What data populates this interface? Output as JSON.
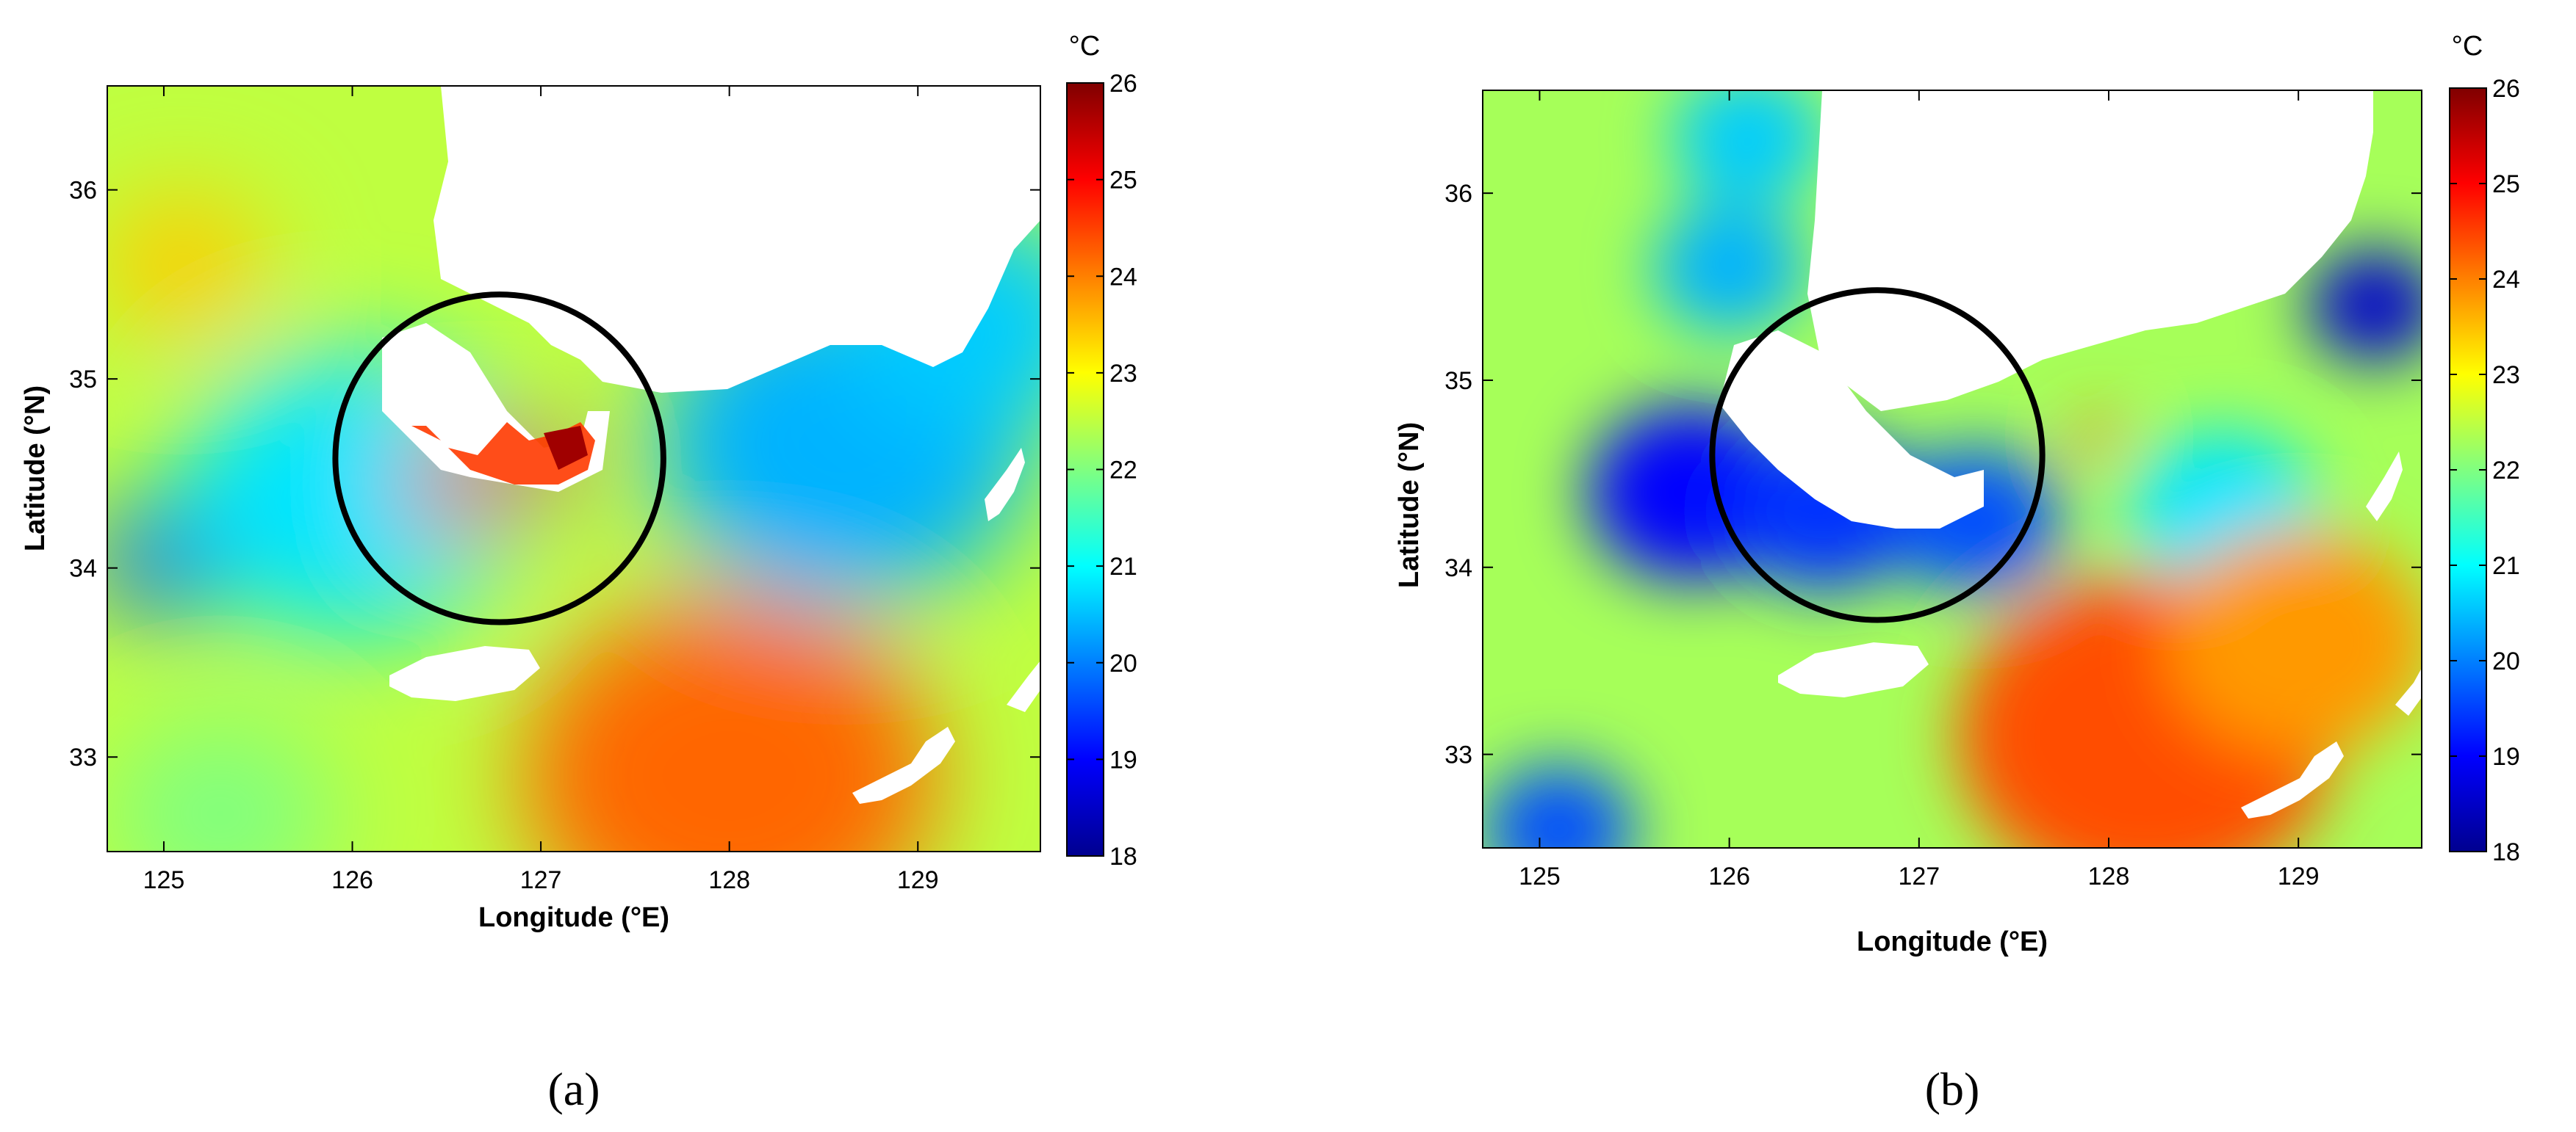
{
  "chart_data": [
    {
      "type": "heatmap",
      "panel_label": "(a)",
      "xlabel": "Longitude (°E)",
      "ylabel": "Latitude (°N)",
      "x_ticks": [
        125,
        126,
        127,
        128,
        129
      ],
      "y_ticks": [
        33,
        34,
        35,
        36
      ],
      "xlim": [
        124.7,
        129.65
      ],
      "ylim": [
        32.5,
        36.55
      ],
      "colorbar": {
        "unit": "°C",
        "min": 18,
        "max": 26,
        "ticks": [
          18,
          19,
          20,
          21,
          22,
          23,
          24,
          25,
          26
        ],
        "colormap": "jet"
      },
      "base_value": 22.5,
      "features": [
        {
          "lon": 125.1,
          "lat": 35.6,
          "value": 23.4,
          "radius_deg": 0.45
        },
        {
          "lon": 125.0,
          "lat": 34.05,
          "value": 19.6,
          "radius_deg": 0.35
        },
        {
          "lon": 126.0,
          "lat": 34.4,
          "value": 20.8,
          "radius_deg": 0.9
        },
        {
          "lon": 128.6,
          "lat": 34.65,
          "value": 20.4,
          "radius_deg": 1.0
        },
        {
          "lon": 129.3,
          "lat": 35.3,
          "value": 20.6,
          "radius_deg": 0.7
        },
        {
          "lon": 128.0,
          "lat": 32.9,
          "value": 24.2,
          "radius_deg": 1.1
        },
        {
          "lon": 126.55,
          "lat": 34.45,
          "value": 25.0,
          "radius_deg": 0.28
        },
        {
          "lon": 127.0,
          "lat": 34.55,
          "value": 25.6,
          "radius_deg": 0.2
        },
        {
          "lon": 125.3,
          "lat": 32.7,
          "value": 22.0,
          "radius_deg": 0.6
        }
      ],
      "circle": {
        "lon": 126.78,
        "lat": 34.58,
        "radius_deg": 0.87
      }
    },
    {
      "type": "heatmap",
      "panel_label": "(b)",
      "xlabel": "Longitude (°E)",
      "ylabel": "Latitude (°N)",
      "x_ticks": [
        125,
        126,
        127,
        128,
        129
      ],
      "y_ticks": [
        33,
        34,
        35,
        36
      ],
      "xlim": [
        124.7,
        129.65
      ],
      "ylim": [
        32.5,
        36.55
      ],
      "colorbar": {
        "unit": "°C",
        "min": 18,
        "max": 26,
        "ticks": [
          18,
          19,
          20,
          21,
          22,
          23,
          24,
          25,
          26
        ],
        "colormap": "jet"
      },
      "base_value": 22.3,
      "features": [
        {
          "lon": 125.8,
          "lat": 34.4,
          "value": 19.0,
          "radius_deg": 0.55
        },
        {
          "lon": 126.5,
          "lat": 34.3,
          "value": 19.4,
          "radius_deg": 0.5
        },
        {
          "lon": 127.3,
          "lat": 34.25,
          "value": 19.6,
          "radius_deg": 0.45
        },
        {
          "lon": 126.0,
          "lat": 35.6,
          "value": 20.4,
          "radius_deg": 0.4
        },
        {
          "lon": 126.1,
          "lat": 36.3,
          "value": 20.6,
          "radius_deg": 0.4
        },
        {
          "lon": 129.4,
          "lat": 35.4,
          "value": 18.6,
          "radius_deg": 0.35
        },
        {
          "lon": 128.6,
          "lat": 34.3,
          "value": 20.8,
          "radius_deg": 0.5
        },
        {
          "lon": 125.1,
          "lat": 32.6,
          "value": 19.6,
          "radius_deg": 0.4
        },
        {
          "lon": 128.2,
          "lat": 33.1,
          "value": 24.4,
          "radius_deg": 1.0
        },
        {
          "lon": 129.0,
          "lat": 33.6,
          "value": 23.8,
          "radius_deg": 0.7
        },
        {
          "lon": 127.95,
          "lat": 34.7,
          "value": 24.3,
          "radius_deg": 0.12
        }
      ],
      "circle": {
        "lon": 126.78,
        "lat": 34.6,
        "radius_deg": 0.87
      }
    }
  ]
}
